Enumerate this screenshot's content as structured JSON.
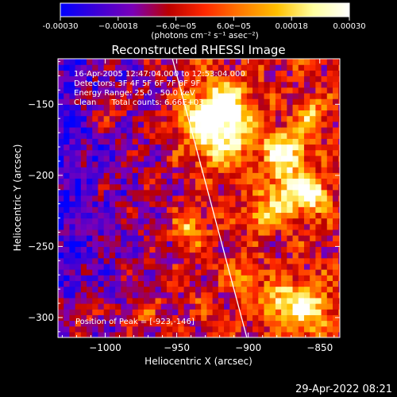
{
  "chart_data": {
    "type": "heatmap",
    "title": "Reconstructed RHESSI Image",
    "xlabel": "Heliocentric X (arcsec)",
    "ylabel": "Heliocentric Y (arcsec)",
    "xlim": [
      -1033,
      -836
    ],
    "ylim": [
      -314,
      -118
    ],
    "x_ticks": [
      -1000,
      -950,
      -900,
      -850
    ],
    "x_tick_labels": [
      "−1000",
      "−950",
      "−900",
      "−850"
    ],
    "y_ticks": [
      -150,
      -200,
      -250,
      -300
    ],
    "y_tick_labels": [
      "−150",
      "−200",
      "−250",
      "−300"
    ],
    "colorbar": {
      "min": -0.0003,
      "max": 0.0003,
      "ticks": [
        -0.0003,
        -0.00018,
        -6e-05,
        6e-05,
        0.00018,
        0.0003
      ],
      "tick_labels": [
        "-0.00030",
        "−0.00018",
        "−6.0e−05",
        "6.0e−05",
        "0.00018",
        "0.00030"
      ],
      "unit_label": "(photons cm⁻² s⁻¹ asec⁻²)",
      "colors": [
        "#0000ff",
        "#3d00d6",
        "#7a00b8",
        "#bb0000",
        "#ff2800",
        "#ff7a00",
        "#ffc000",
        "#ffffa0",
        "#ffffff"
      ]
    },
    "info_lines": [
      "16-Apr-2005 12:47:04.000 to 12:53:04.000",
      "Detectors: 3F 4F 5F 6F 7F 8F 9F",
      "Energy Range: 25.0 - 50.0 keV",
      "Clean      Total counts: 6.66E+03"
    ],
    "peak_label": "Position of Peak = [-923,-146]",
    "peak": [
      -923,
      -146
    ],
    "limb_line": [
      [
        -953,
        -118
      ],
      [
        -901,
        -314
      ]
    ]
  },
  "footer": {
    "timestamp": "29-Apr-2022 08:21"
  }
}
